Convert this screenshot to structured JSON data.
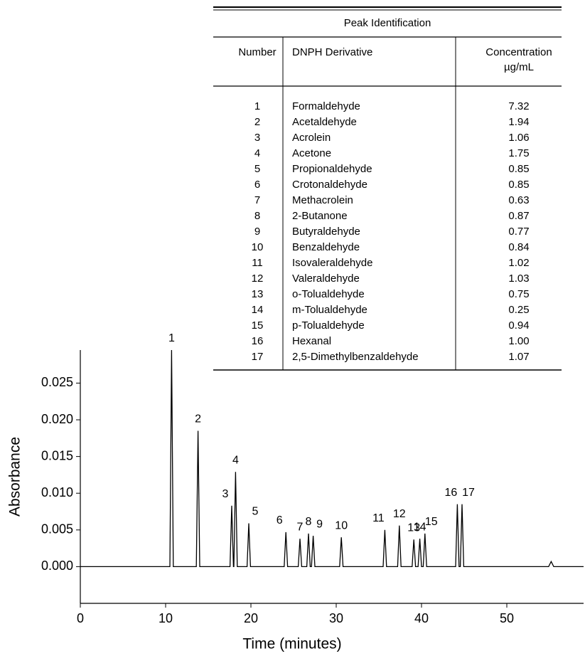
{
  "chart_data": {
    "type": "line",
    "x_label": "Time (minutes)",
    "y_label": "Absorbance",
    "x": [
      0,
      10.5,
      10.7,
      10.9,
      13.6,
      13.8,
      14.0,
      17.55,
      17.75,
      17.95,
      18.0,
      18.2,
      18.4,
      19.55,
      19.75,
      19.95,
      23.9,
      24.1,
      24.3,
      25.55,
      25.75,
      25.95,
      26.55,
      26.75,
      26.95,
      27.1,
      27.3,
      27.5,
      30.4,
      30.6,
      30.8,
      35.5,
      35.7,
      35.9,
      37.2,
      37.4,
      37.6,
      38.9,
      39.1,
      39.3,
      39.6,
      39.8,
      40.0,
      40.2,
      40.4,
      40.6,
      44.0,
      44.2,
      44.4,
      44.55,
      44.75,
      44.95,
      54.9,
      55.2,
      55.5,
      59
    ],
    "series": [
      {
        "color": "#000000",
        "values": [
          0,
          0,
          0.0295,
          0,
          0,
          0.0185,
          0,
          0,
          0.0083,
          0,
          0,
          0.0129,
          0,
          0,
          0.0059,
          0,
          0,
          0.0047,
          0,
          0,
          0.0038,
          0,
          0,
          0.0045,
          0,
          0,
          0.0042,
          0,
          0,
          0.004,
          0,
          0,
          0.005,
          0,
          0,
          0.0056,
          0,
          0,
          0.0037,
          0,
          0,
          0.0038,
          0,
          0,
          0.0045,
          0,
          0,
          0.0085,
          0,
          0,
          0.0085,
          0,
          0,
          0.0007,
          0,
          0
        ],
        "peak_labels": [
          null,
          null,
          "1",
          null,
          null,
          "2",
          null,
          null,
          "3",
          null,
          null,
          "4",
          null,
          null,
          "5",
          null,
          null,
          "6",
          null,
          null,
          "7",
          null,
          null,
          "8",
          null,
          null,
          "9",
          null,
          null,
          "10",
          null,
          null,
          "11",
          null,
          null,
          "12",
          null,
          null,
          "13",
          null,
          null,
          "14",
          null,
          null,
          "15",
          null,
          null,
          "16",
          null,
          null,
          "17",
          null,
          null,
          null,
          null,
          null
        ]
      }
    ],
    "xlim": [
      0,
      59
    ],
    "xticks": [
      0,
      10,
      20,
      30,
      40,
      50
    ],
    "ylim": [
      -0.005,
      0.0295
    ],
    "yticks": [
      {
        "value": 0,
        "label": "0.000"
      },
      {
        "value": 0.005,
        "label": "0.005"
      },
      {
        "value": 0.01,
        "label": "0.010"
      },
      {
        "value": 0.015,
        "label": "0.015"
      },
      {
        "value": 0.02,
        "label": "0.020"
      },
      {
        "value": 0.025,
        "label": "0.025"
      }
    ],
    "grid": false
  },
  "table": {
    "title": "Peak Identification",
    "columns": [
      "Number",
      "DNPH Derivative",
      "Concentration"
    ],
    "concentration_unit": "µg/mL",
    "rows": [
      [
        "1",
        "Formaldehyde",
        "7.32"
      ],
      [
        "2",
        "Acetaldehyde",
        "1.94"
      ],
      [
        "3",
        "Acrolein",
        "1.06"
      ],
      [
        "4",
        "Acetone",
        "1.75"
      ],
      [
        "5",
        "Propionaldehyde",
        "0.85"
      ],
      [
        "6",
        "Crotonaldehyde",
        "0.85"
      ],
      [
        "7",
        "Methacrolein",
        "0.63"
      ],
      [
        "8",
        "2-Butanone",
        "0.87"
      ],
      [
        "9",
        "Butyraldehyde",
        "0.77"
      ],
      [
        "10",
        "Benzaldehyde",
        "0.84"
      ],
      [
        "11",
        "Isovaleraldehyde",
        "1.02"
      ],
      [
        "12",
        "Valeraldehyde",
        "1.03"
      ],
      [
        "13",
        "o-Tolualdehyde",
        "0.75"
      ],
      [
        "14",
        "m-Tolualdehyde",
        "0.25"
      ],
      [
        "15",
        "p-Tolualdehyde",
        "0.94"
      ],
      [
        "16",
        "Hexanal",
        "1.00"
      ],
      [
        "17",
        "2,5-Dimethylbenzaldehyde",
        "1.07"
      ]
    ]
  }
}
